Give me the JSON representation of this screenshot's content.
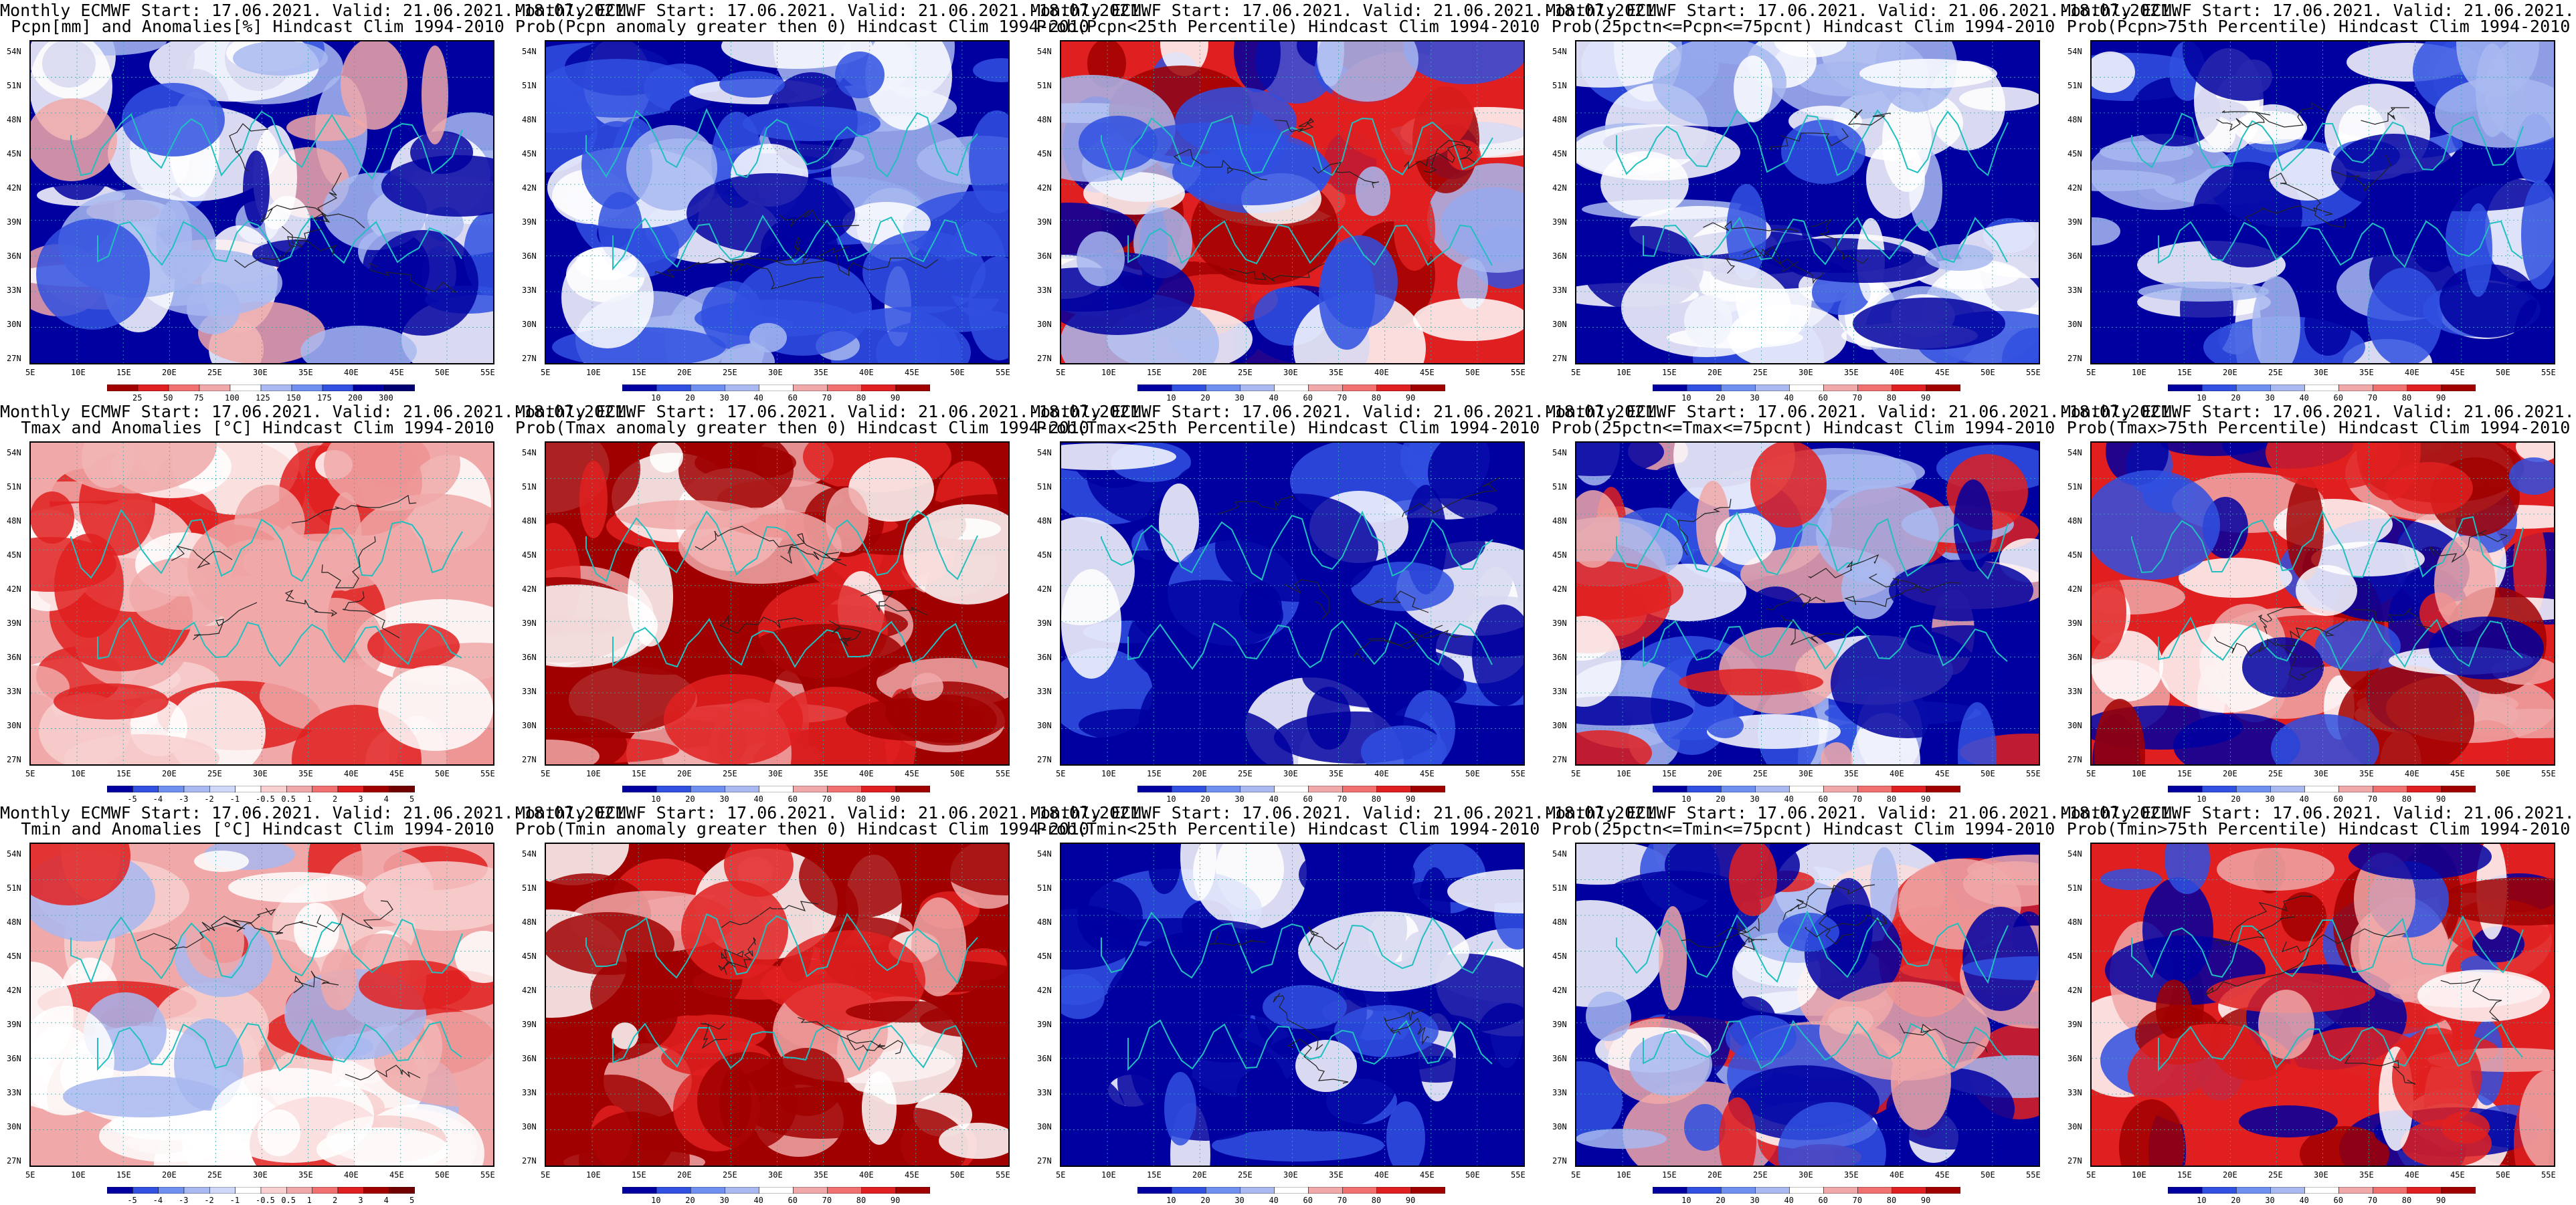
{
  "titles": {
    "line1": "Monthly ECMWF Start: 17.06.2021. Valid: 21.06.2021.-18.07.2021.",
    "rows": [
      [
        "Pcpn[mm] and Anomalies[%] Hindcast Clim 1994-2010",
        "Prob(Pcpn anomaly greater then 0) Hindcast Clim 1994-2010",
        "Prob(Pcpn<25th Percentile) Hindcast Clim 1994-2010",
        "Prob(25pctn<=Pcpn<=75pcnt) Hindcast Clim 1994-2010",
        "Prob(Pcpn>75th Percentile) Hindcast Clim 1994-2010"
      ],
      [
        "Tmax and Anomalies [°C] Hindcast Clim 1994-2010",
        "Prob(Tmax anomaly greater then 0) Hindcast Clim 1994-2010",
        "Prob(Tmax<25th Percentile) Hindcast Clim 1994-2010",
        "Prob(25pctn<=Tmax<=75pcnt) Hindcast Clim 1994-2010",
        "Prob(Tmax>75th Percentile) Hindcast Clim 1994-2010"
      ],
      [
        "Tmin and Anomalies [°C] Hindcast Clim 1994-2010",
        "Prob(Tmin anomaly greater then 0) Hindcast Clim 1994-2010",
        "Prob(Tmin<25th Percentile) Hindcast Clim 1994-2010",
        "Prob(25pctn<=Tmin<=75pcnt) Hindcast Clim 1994-2010",
        "Prob(Tmin>75th Percentile) Hindcast Clim 1994-2010"
      ]
    ]
  },
  "lat_labels": [
    "54N",
    "51N",
    "48N",
    "45N",
    "42N",
    "39N",
    "36N",
    "33N",
    "30N",
    "27N"
  ],
  "lon_labels": [
    "5E",
    "10E",
    "15E",
    "20E",
    "25E",
    "30E",
    "35E",
    "40E",
    "45E",
    "50E",
    "55E"
  ],
  "colorbars": {
    "pcpn_anom": [
      "25",
      "50",
      "75",
      "100",
      "125",
      "150",
      "175",
      "200",
      "300"
    ],
    "prob": [
      "10",
      "20",
      "30",
      "40",
      "60",
      "70",
      "80",
      "90"
    ],
    "temp_anom": [
      "-5",
      "-4",
      "-3",
      "-2",
      "-1",
      "-0.5",
      "0.5",
      "1",
      "2",
      "3",
      "4",
      "5"
    ]
  },
  "colors": {
    "blue_dark": "#0000a0",
    "blue": "#3050e0",
    "blue_light": "#a8b8f0",
    "white": "#ffffff",
    "red_light": "#f0a8a8",
    "red": "#e02020",
    "red_dark": "#a00000",
    "coast": "#20c0c0"
  },
  "panel_styles": [
    [
      "pcpn",
      "prob_bluish",
      "prob_mixed_red",
      "prob_blue_white",
      "prob_blue"
    ],
    [
      "anom_red",
      "prob_red",
      "prob_blue_dark",
      "prob_mixed_blue",
      "prob_red_mixed"
    ],
    [
      "anom_light",
      "prob_red",
      "prob_blue_dark",
      "prob_mixed_blue",
      "prob_red_mixed"
    ]
  ],
  "panel_colorbars": [
    [
      "pcpn_anom",
      "prob",
      "prob",
      "prob",
      "prob"
    ],
    [
      "temp_anom",
      "prob",
      "prob",
      "prob",
      "prob"
    ],
    [
      "temp_anom",
      "prob",
      "prob",
      "prob",
      "prob"
    ]
  ]
}
